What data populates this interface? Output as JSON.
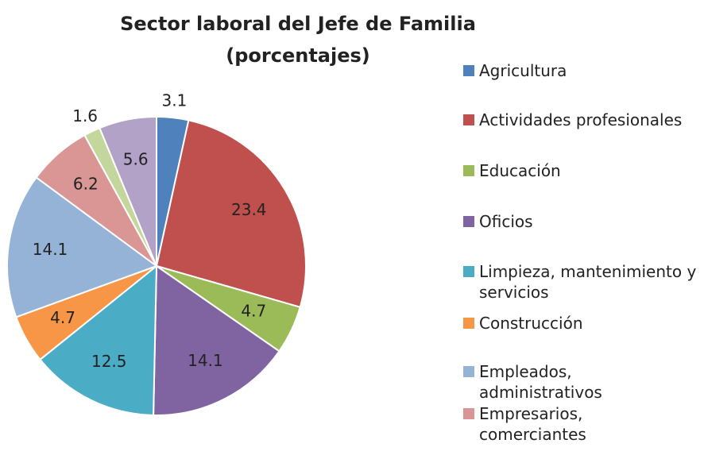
{
  "chart_data": {
    "type": "pie",
    "title": "Sector laboral  del Jefe de Familia (porcentajes)",
    "categories": [
      "Agricultura",
      "Actividades profesionales",
      "Educación",
      "Oficios",
      "Limpieza, mantenimiento y servicios",
      "Construcción",
      "Empleados, administrativos",
      "Empresarios, comerciantes",
      null,
      null
    ],
    "values": [
      3.1,
      23.4,
      4.7,
      14.1,
      12.5,
      4.7,
      14.1,
      6.2,
      1.6,
      5.6
    ],
    "colors": [
      "#4f81bd",
      "#c0504d",
      "#9bbb59",
      "#8064a2",
      "#4bacc6",
      "#f79646",
      "#95b3d7",
      "#d99694",
      "#c3d69b",
      "#b2a2c7"
    ],
    "legend": "right"
  }
}
